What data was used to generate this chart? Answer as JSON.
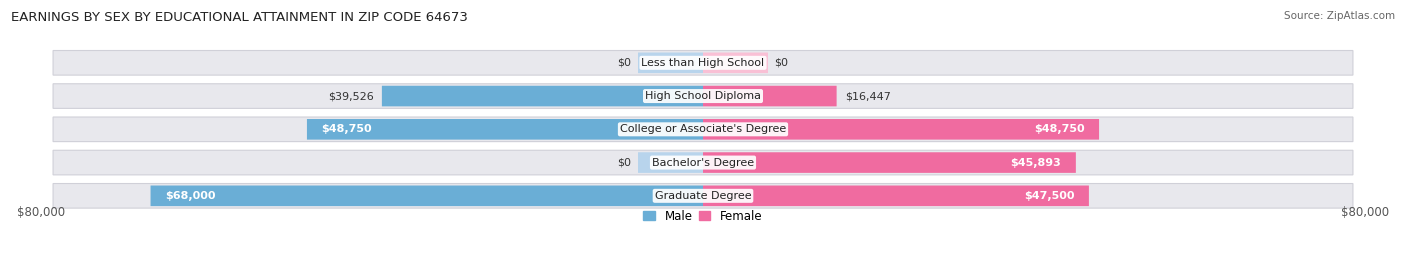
{
  "title": "EARNINGS BY SEX BY EDUCATIONAL ATTAINMENT IN ZIP CODE 64673",
  "source": "Source: ZipAtlas.com",
  "categories": [
    "Less than High School",
    "High School Diploma",
    "College or Associate's Degree",
    "Bachelor's Degree",
    "Graduate Degree"
  ],
  "male_values": [
    0,
    39526,
    48750,
    0,
    68000
  ],
  "female_values": [
    0,
    16447,
    48750,
    45893,
    47500
  ],
  "male_color": "#6aaed6",
  "female_color": "#f06ba0",
  "male_color_light": "#b8d4ec",
  "female_color_light": "#f9c0d5",
  "row_bg_color": "#e8e8ed",
  "row_border_color": "#d0d0d8",
  "max_value": 80000,
  "background_color": "#ffffff",
  "title_fontsize": 9.5,
  "source_fontsize": 7.5,
  "axis_fontsize": 8.5,
  "label_fontsize": 8.0,
  "value_inside_threshold": 40000,
  "stub_value": 8000
}
